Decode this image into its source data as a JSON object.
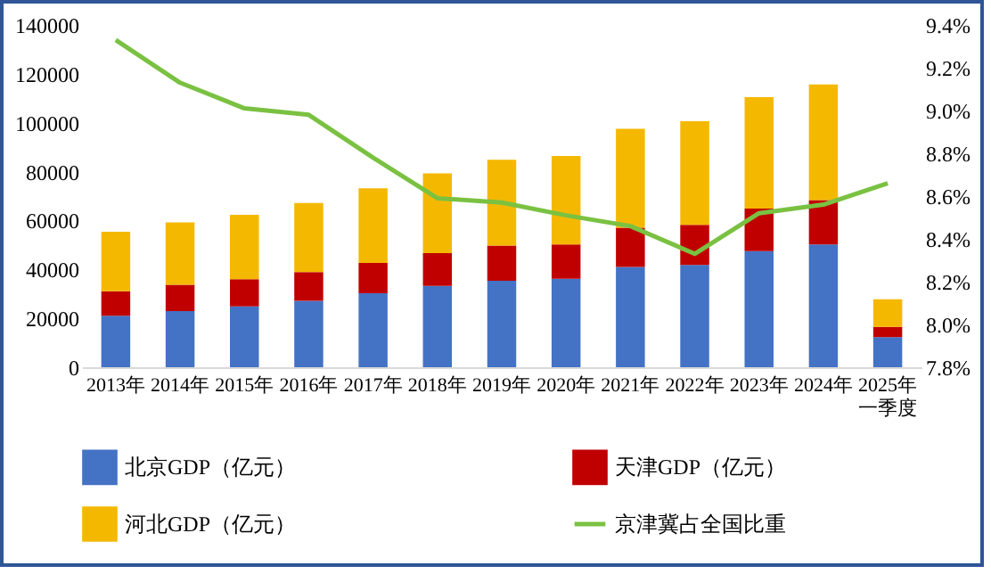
{
  "chart_data": {
    "type": "bar",
    "stacked": true,
    "grid": false,
    "legend": "bottom",
    "categories": [
      "2013年",
      "2014年",
      "2015年",
      "2016年",
      "2017年",
      "2018年",
      "2019年",
      "2020年",
      "2021年",
      "2022年",
      "2023年",
      "2024年",
      "2025年一季度"
    ],
    "series": [
      {
        "name": "北京GDP（亿元）",
        "type": "bar",
        "color": "#4472c4",
        "values": [
          21100,
          23000,
          24900,
          27200,
          30300,
          33300,
          35400,
          36200,
          41000,
          41800,
          47500,
          50200,
          12300
        ]
      },
      {
        "name": "天津GDP（亿元）",
        "type": "bar",
        "color": "#c00000",
        "values": [
          10000,
          10700,
          11100,
          11700,
          12400,
          13400,
          14400,
          14000,
          16100,
          16400,
          17400,
          18200,
          4200
        ]
      },
      {
        "name": "河北GDP（亿元）",
        "type": "bar",
        "color": "#f5b800",
        "values": [
          24300,
          25500,
          26300,
          28300,
          30500,
          32600,
          35100,
          36200,
          40400,
          42400,
          45600,
          47300,
          11300
        ]
      },
      {
        "name": "京津冀占全国比重",
        "type": "line",
        "axis": "y2",
        "color": "#7ac142",
        "values": [
          9.33,
          9.13,
          9.01,
          8.98,
          8.78,
          8.59,
          8.57,
          8.51,
          8.46,
          8.33,
          8.52,
          8.56,
          8.66
        ]
      }
    ],
    "ylim": [
      0,
      140000
    ],
    "yticks": [
      0,
      20000,
      40000,
      60000,
      80000,
      100000,
      120000,
      140000
    ],
    "y2lim": [
      7.8,
      9.4
    ],
    "y2ticks": [
      {
        "value": 7.8,
        "label": "7.8%"
      },
      {
        "value": 8.0,
        "label": "8.0%"
      },
      {
        "value": 8.2,
        "label": "8.2%"
      },
      {
        "value": 8.4,
        "label": "8.4%"
      },
      {
        "value": 8.6,
        "label": "8.6%"
      },
      {
        "value": 8.8,
        "label": "8.8%"
      },
      {
        "value": 9.0,
        "label": "9.0%"
      },
      {
        "value": 9.2,
        "label": "9.2%"
      },
      {
        "value": 9.4,
        "label": "9.4%"
      }
    ]
  }
}
